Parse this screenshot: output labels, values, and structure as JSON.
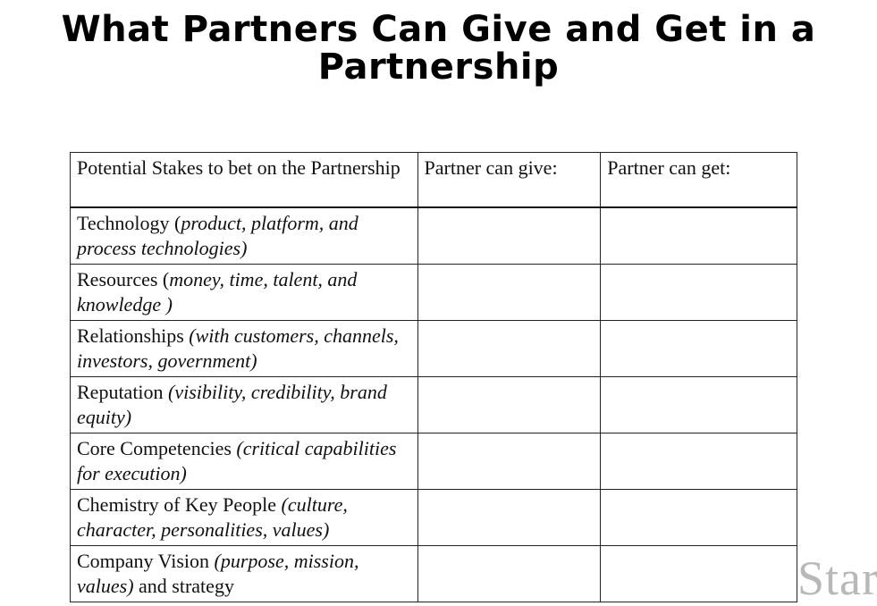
{
  "slide": {
    "title_line1": "What Partners Can Give and Get in a",
    "title_line2": "Partnership"
  },
  "table": {
    "headers": {
      "stake": "Potential Stakes to bet on the Partnership",
      "give": "Partner can give:",
      "get": "Partner can get:"
    },
    "rows": [
      {
        "name": "Technology",
        "open": " (",
        "desc": "product, platform, and process technologies)",
        "tail": ""
      },
      {
        "name": "Resources",
        "open": " (",
        "desc": "money, time, talent, and knowledge )",
        "tail": ""
      },
      {
        "name": "Relationships",
        "open": " ",
        "desc": "(with customers, channels, investors, government)",
        "tail": ""
      },
      {
        "name": "Reputation",
        "open": " ",
        "desc": "(visibility, credibility, brand equity)",
        "tail": ""
      },
      {
        "name": "Core Competencies",
        "open": " ",
        "desc": "(critical capabilities for execution)",
        "tail": ""
      },
      {
        "name": "Chemistry of Key People",
        "open": " ",
        "desc": "(culture, character, personalities, values)",
        "tail": ""
      },
      {
        "name": "Company Vision",
        "open": " ",
        "desc": "(purpose, mission, values)",
        "tail": " and strategy"
      }
    ]
  },
  "watermark": {
    "text": "Star"
  }
}
